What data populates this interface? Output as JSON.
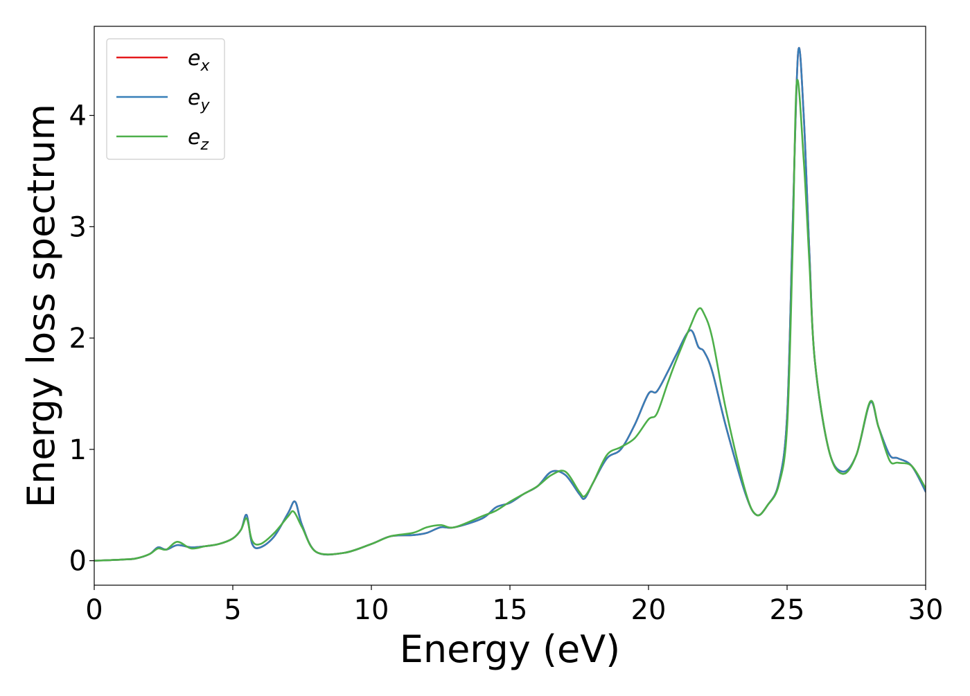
{
  "chart_data": {
    "type": "line",
    "title": "",
    "xlabel": "Energy (eV)",
    "ylabel": "Energy loss spectrum",
    "xlim": [
      0,
      30
    ],
    "ylim": [
      -0.22,
      4.8
    ],
    "xticks": [
      0,
      5,
      10,
      15,
      20,
      25,
      30
    ],
    "yticks": [
      0,
      1,
      2,
      3,
      4
    ],
    "grid": false,
    "legend_position": "top-left",
    "series": [
      {
        "name": "e",
        "subscript": "x",
        "color": "#e41a1c",
        "x": [
          0,
          1,
          1.5,
          2.0,
          2.3,
          2.6,
          3.0,
          3.5,
          4.0,
          4.5,
          5.0,
          5.3,
          5.5,
          5.7,
          6.0,
          6.5,
          7.0,
          7.25,
          7.5,
          8.0,
          9.0,
          10.0,
          10.7,
          11.5,
          12.0,
          12.5,
          13.0,
          14.0,
          14.5,
          15.0,
          15.5,
          16.0,
          16.5,
          17.0,
          17.5,
          17.7,
          18.0,
          18.5,
          19.0,
          19.5,
          20.0,
          20.3,
          20.7,
          21.0,
          21.5,
          21.8,
          22.0,
          22.3,
          22.8,
          23.5,
          23.9,
          24.3,
          24.7,
          25.0,
          25.2,
          25.4,
          25.6,
          25.8,
          26.0,
          26.5,
          27.0,
          27.5,
          28.0,
          28.3,
          28.7,
          29.0,
          29.5,
          30.0
        ],
        "y": [
          0.0,
          0.01,
          0.02,
          0.06,
          0.12,
          0.1,
          0.14,
          0.12,
          0.13,
          0.15,
          0.2,
          0.28,
          0.41,
          0.15,
          0.12,
          0.22,
          0.43,
          0.53,
          0.32,
          0.08,
          0.07,
          0.15,
          0.22,
          0.23,
          0.25,
          0.3,
          0.3,
          0.38,
          0.48,
          0.52,
          0.6,
          0.67,
          0.8,
          0.77,
          0.6,
          0.56,
          0.7,
          0.92,
          1.0,
          1.22,
          1.5,
          1.52,
          1.7,
          1.85,
          2.07,
          1.92,
          1.88,
          1.7,
          1.2,
          0.6,
          0.41,
          0.5,
          0.7,
          1.3,
          3.0,
          4.57,
          4.0,
          2.8,
          1.8,
          1.0,
          0.8,
          0.95,
          1.42,
          1.2,
          0.95,
          0.92,
          0.85,
          0.62
        ]
      },
      {
        "name": "e",
        "subscript": "y",
        "color": "#377eb8",
        "x": [
          0,
          1,
          1.5,
          2.0,
          2.3,
          2.6,
          3.0,
          3.5,
          4.0,
          4.5,
          5.0,
          5.3,
          5.5,
          5.7,
          6.0,
          6.5,
          7.0,
          7.25,
          7.5,
          8.0,
          9.0,
          10.0,
          10.7,
          11.5,
          12.0,
          12.5,
          13.0,
          14.0,
          14.5,
          15.0,
          15.5,
          16.0,
          16.5,
          17.0,
          17.5,
          17.7,
          18.0,
          18.5,
          19.0,
          19.5,
          20.0,
          20.3,
          20.7,
          21.0,
          21.5,
          21.8,
          22.0,
          22.3,
          22.8,
          23.5,
          23.9,
          24.3,
          24.7,
          25.0,
          25.2,
          25.4,
          25.6,
          25.8,
          26.0,
          26.5,
          27.0,
          27.5,
          28.0,
          28.3,
          28.7,
          29.0,
          29.5,
          30.0
        ],
        "y": [
          0.0,
          0.01,
          0.02,
          0.06,
          0.12,
          0.1,
          0.14,
          0.12,
          0.13,
          0.15,
          0.2,
          0.28,
          0.41,
          0.15,
          0.12,
          0.22,
          0.43,
          0.53,
          0.32,
          0.08,
          0.07,
          0.15,
          0.22,
          0.23,
          0.25,
          0.3,
          0.3,
          0.38,
          0.48,
          0.52,
          0.6,
          0.67,
          0.8,
          0.77,
          0.6,
          0.56,
          0.7,
          0.92,
          1.0,
          1.22,
          1.5,
          1.52,
          1.7,
          1.85,
          2.07,
          1.92,
          1.88,
          1.7,
          1.2,
          0.6,
          0.41,
          0.5,
          0.7,
          1.3,
          3.0,
          4.57,
          4.0,
          2.8,
          1.8,
          1.0,
          0.8,
          0.95,
          1.42,
          1.2,
          0.95,
          0.92,
          0.85,
          0.62
        ]
      },
      {
        "name": "e",
        "subscript": "z",
        "color": "#4daf4a",
        "x": [
          0,
          1,
          1.5,
          2.0,
          2.3,
          2.6,
          3.0,
          3.5,
          4.0,
          4.5,
          5.0,
          5.3,
          5.5,
          5.7,
          6.0,
          6.5,
          7.0,
          7.2,
          7.5,
          8.0,
          9.0,
          10.0,
          10.7,
          11.5,
          12.0,
          12.5,
          13.0,
          14.0,
          14.5,
          15.0,
          15.5,
          16.0,
          16.5,
          17.0,
          17.5,
          17.7,
          18.0,
          18.5,
          19.0,
          19.5,
          20.0,
          20.3,
          20.7,
          21.0,
          21.5,
          21.8,
          22.0,
          22.3,
          22.8,
          23.5,
          23.9,
          24.3,
          24.7,
          25.0,
          25.2,
          25.35,
          25.6,
          25.8,
          26.0,
          26.5,
          27.0,
          27.5,
          28.0,
          28.3,
          28.7,
          29.0,
          29.5,
          30.0
        ],
        "y": [
          0.0,
          0.01,
          0.02,
          0.06,
          0.11,
          0.1,
          0.17,
          0.11,
          0.13,
          0.15,
          0.2,
          0.28,
          0.38,
          0.18,
          0.15,
          0.25,
          0.4,
          0.44,
          0.3,
          0.08,
          0.07,
          0.15,
          0.22,
          0.25,
          0.3,
          0.32,
          0.3,
          0.4,
          0.45,
          0.53,
          0.6,
          0.67,
          0.77,
          0.8,
          0.62,
          0.58,
          0.7,
          0.95,
          1.02,
          1.1,
          1.27,
          1.32,
          1.6,
          1.8,
          2.1,
          2.26,
          2.22,
          2.0,
          1.35,
          0.62,
          0.41,
          0.5,
          0.68,
          1.2,
          2.8,
          4.3,
          3.6,
          2.7,
          1.8,
          1.0,
          0.78,
          0.95,
          1.43,
          1.2,
          0.9,
          0.88,
          0.85,
          0.65
        ]
      }
    ]
  }
}
